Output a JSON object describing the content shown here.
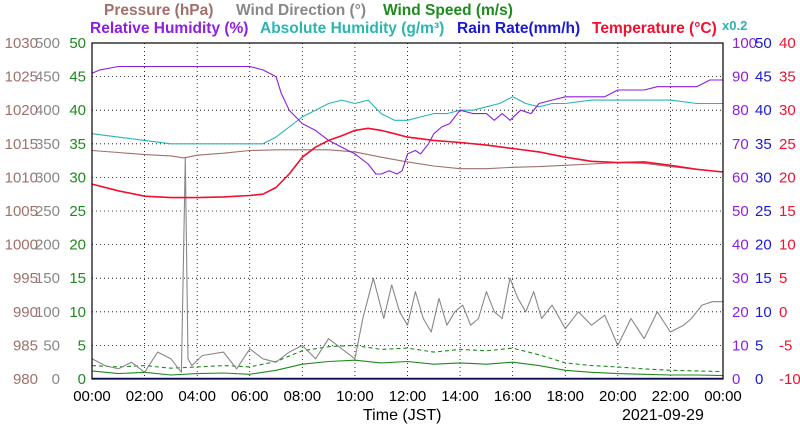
{
  "colors": {
    "pressure": "#a0706a",
    "wind_direction": "#888888",
    "wind_speed": "#1f8a1f",
    "humidity_rel": "#8e1ee0",
    "humidity_abs": "#2ab5b0",
    "rain_rate": "#1a1ad0",
    "temperature": "#f01030",
    "grid": "#000000"
  },
  "chart_data": {
    "type": "line",
    "date": "2021-09-29",
    "xlabel": "Time (JST)",
    "x_ticks": [
      "00:00",
      "02:00",
      "04:00",
      "06:00",
      "08:00",
      "10:00",
      "12:00",
      "14:00",
      "16:00",
      "18:00",
      "20:00",
      "22:00",
      "00:00"
    ],
    "xlim_hours": [
      0,
      24
    ],
    "grid": "dotted",
    "legend": {
      "row1": [
        {
          "id": "pressure",
          "label": "Pressure (hPa)"
        },
        {
          "id": "wind_direction",
          "label": "Wind Direction (°)"
        },
        {
          "id": "wind_speed",
          "label": "Wind Speed (m/s)"
        }
      ],
      "row2": [
        {
          "id": "humidity_rel",
          "label": "Relative Humidity (%)"
        },
        {
          "id": "humidity_abs",
          "label": "Absolute Humidity (g/m³)"
        },
        {
          "id": "rain_rate",
          "label": "Rain Rate(mm/h)"
        },
        {
          "id": "temperature",
          "label": "Temperature (°C)"
        }
      ],
      "scale_note": "x0.2"
    },
    "axes": {
      "pressure": {
        "side": "left",
        "min": 980,
        "max": 1030,
        "ticks": [
          "980",
          "985",
          "990",
          "995",
          "1000",
          "1005",
          "1010",
          "1015",
          "1020",
          "1025",
          "1030"
        ]
      },
      "wind_direction": {
        "side": "left",
        "min": 0,
        "max": 500,
        "ticks": [
          "0",
          "50",
          "100",
          "150",
          "200",
          "250",
          "300",
          "350",
          "400",
          "450",
          "500"
        ]
      },
      "wind_speed": {
        "side": "left",
        "min": 0,
        "max": 50,
        "ticks": [
          "0",
          "5",
          "10",
          "15",
          "20",
          "25",
          "30",
          "35",
          "40",
          "45",
          "50"
        ]
      },
      "humidity_rel": {
        "side": "right",
        "min": 0,
        "max": 100,
        "ticks": [
          "0",
          "10",
          "20",
          "30",
          "40",
          "50",
          "60",
          "70",
          "80",
          "90",
          "100"
        ]
      },
      "rain_rate": {
        "side": "right",
        "min": 0,
        "max": 50,
        "ticks": [
          "0",
          "5",
          "10",
          "15",
          "20",
          "25",
          "30",
          "35",
          "40",
          "45",
          "50"
        ]
      },
      "temperature": {
        "side": "right",
        "min": -10,
        "max": 40,
        "ticks": [
          "-10",
          "-5",
          "0",
          "5",
          "10",
          "15",
          "20",
          "25",
          "30",
          "35",
          "40"
        ]
      }
    },
    "series": [
      {
        "id": "pressure",
        "name": "Pressure (hPa)",
        "axis": "pressure",
        "x": [
          0,
          1,
          2,
          3,
          3.5,
          4,
          5,
          6,
          7,
          8,
          9,
          10,
          11,
          12,
          13,
          14,
          15,
          16,
          17,
          18,
          19,
          20,
          21,
          22,
          23,
          24
        ],
        "y": [
          1014.0,
          1013.7,
          1013.4,
          1013.2,
          1012.9,
          1013.3,
          1013.6,
          1014.0,
          1014.1,
          1014.1,
          1014.1,
          1013.8,
          1013.0,
          1012.3,
          1011.7,
          1011.3,
          1011.3,
          1011.5,
          1011.6,
          1011.8,
          1012.0,
          1012.2,
          1012.1,
          1011.6,
          1011.2,
          1010.8
        ]
      },
      {
        "id": "wind_direction",
        "name": "Wind Direction (°)",
        "axis": "wind_direction",
        "x": [
          0,
          0.5,
          1,
          1.5,
          2,
          2.5,
          3,
          3.4,
          3.55,
          3.65,
          3.8,
          4.2,
          5,
          5.5,
          6,
          6.5,
          7,
          7.5,
          8,
          8.5,
          9,
          9.5,
          10,
          10.3,
          10.7,
          10.9,
          11.1,
          11.4,
          11.7,
          12.0,
          12.3,
          12.6,
          12.9,
          13.2,
          13.5,
          13.8,
          14.1,
          14.4,
          14.7,
          15.0,
          15.3,
          15.6,
          15.9,
          16.2,
          16.5,
          16.8,
          17.1,
          17.5,
          18,
          18.5,
          19,
          19.5,
          20,
          20.5,
          21,
          21.5,
          22,
          22.5,
          22.8,
          23.2,
          23.6,
          24
        ],
        "y": [
          30,
          20,
          15,
          25,
          10,
          40,
          30,
          10,
          330,
          30,
          20,
          35,
          40,
          15,
          45,
          30,
          25,
          40,
          50,
          30,
          60,
          45,
          30,
          90,
          150,
          120,
          90,
          140,
          100,
          80,
          130,
          90,
          70,
          120,
          80,
          100,
          110,
          80,
          90,
          130,
          100,
          90,
          150,
          120,
          100,
          130,
          90,
          110,
          75,
          100,
          80,
          95,
          50,
          90,
          60,
          100,
          70,
          80,
          90,
          110,
          115,
          115
        ]
      },
      {
        "id": "wind_speed",
        "name": "Wind Speed (m/s)",
        "axis": "wind_speed",
        "x": [
          0,
          1,
          2,
          3,
          4,
          5,
          6,
          7,
          8,
          9,
          10,
          11,
          12,
          13,
          14,
          15,
          16,
          17,
          18,
          19,
          20,
          21,
          22,
          23,
          24
        ],
        "y": [
          1.2,
          0.8,
          1.0,
          0.6,
          0.8,
          0.9,
          0.7,
          1.3,
          2.2,
          2.6,
          2.8,
          2.4,
          2.6,
          2.2,
          2.4,
          2.2,
          2.5,
          2.0,
          1.3,
          1.0,
          0.8,
          0.7,
          0.6,
          0.6,
          0.5
        ]
      },
      {
        "id": "wind_gust",
        "name": "",
        "axis": "wind_speed",
        "dashed": true,
        "x": [
          0,
          1,
          2,
          3,
          4,
          5,
          6,
          7,
          8,
          9,
          10,
          11,
          12,
          13,
          14,
          15,
          16,
          17,
          18,
          19,
          20,
          21,
          22,
          23,
          24
        ],
        "y": [
          2.0,
          1.8,
          2.0,
          1.6,
          1.8,
          2.0,
          1.8,
          2.6,
          4.2,
          4.8,
          5.0,
          4.4,
          4.6,
          4.0,
          4.4,
          4.2,
          4.6,
          3.6,
          2.4,
          2.0,
          1.8,
          1.5,
          1.3,
          1.2,
          1.1
        ]
      },
      {
        "id": "humidity_rel",
        "name": "Relative Humidity (%)",
        "axis": "humidity_rel",
        "x": [
          0,
          0.3,
          1,
          2,
          3,
          4,
          5,
          5.5,
          6,
          6.5,
          7,
          7.2,
          7.5,
          8,
          8.5,
          9,
          9.5,
          10,
          10.5,
          10.8,
          11,
          11.3,
          11.6,
          11.8,
          12,
          12.3,
          12.5,
          12.8,
          13,
          13.3,
          13.6,
          14,
          14.5,
          15,
          15.3,
          15.6,
          15.9,
          16.3,
          16.7,
          17,
          17.5,
          18,
          18.5,
          19,
          19.5,
          20,
          20.5,
          21,
          21.5,
          22,
          22.5,
          23,
          23.5,
          24
        ],
        "y": [
          91,
          92,
          93,
          93,
          93,
          93,
          93,
          93,
          93,
          92,
          90,
          85,
          80,
          76,
          74,
          71,
          69,
          67,
          64,
          61,
          61,
          62,
          61,
          62,
          67,
          68,
          67,
          70,
          73,
          75,
          76,
          80,
          79,
          79,
          77,
          79,
          77,
          80,
          79,
          82,
          83,
          84,
          84,
          84,
          84,
          86,
          86,
          86,
          87,
          87,
          87,
          87,
          89,
          89
        ]
      },
      {
        "id": "humidity_abs",
        "name": "Absolute Humidity (g/m³)",
        "axis": "humidity_rel",
        "x": [
          0,
          1,
          2,
          3,
          4,
          5,
          6,
          6.5,
          7,
          7.5,
          8,
          8.5,
          9,
          9.5,
          10,
          10.5,
          11,
          11.5,
          12,
          12.5,
          13,
          13.5,
          14,
          14.5,
          15,
          15.5,
          16,
          16.5,
          17,
          17.5,
          18,
          19,
          20,
          21,
          22,
          23,
          23.5,
          24
        ],
        "y": [
          73,
          72,
          71,
          70,
          70,
          70,
          70,
          70,
          72,
          75,
          78,
          80,
          82,
          83,
          82,
          83,
          79,
          77,
          77,
          78,
          79,
          79,
          80,
          80,
          81,
          82,
          84,
          82,
          81,
          82,
          82,
          83,
          83,
          83,
          83,
          82,
          82,
          82
        ]
      },
      {
        "id": "temperature",
        "name": "Temperature (°C)",
        "axis": "temperature",
        "x": [
          0,
          1,
          2,
          3,
          4,
          5,
          6,
          6.5,
          7,
          7.5,
          8,
          8.5,
          9,
          9.5,
          10,
          10.5,
          11,
          11.5,
          12,
          13,
          14,
          15,
          16,
          17,
          18,
          19,
          20,
          21,
          22,
          23,
          24
        ],
        "y": [
          19.0,
          18.0,
          17.2,
          17.0,
          17.0,
          17.1,
          17.3,
          17.5,
          18.5,
          20.5,
          23.0,
          24.5,
          25.5,
          26.2,
          27.0,
          27.3,
          27.0,
          26.5,
          26.0,
          25.5,
          25.2,
          24.8,
          24.3,
          23.8,
          23.0,
          22.4,
          22.2,
          22.3,
          21.8,
          21.2,
          20.8
        ]
      }
    ]
  }
}
